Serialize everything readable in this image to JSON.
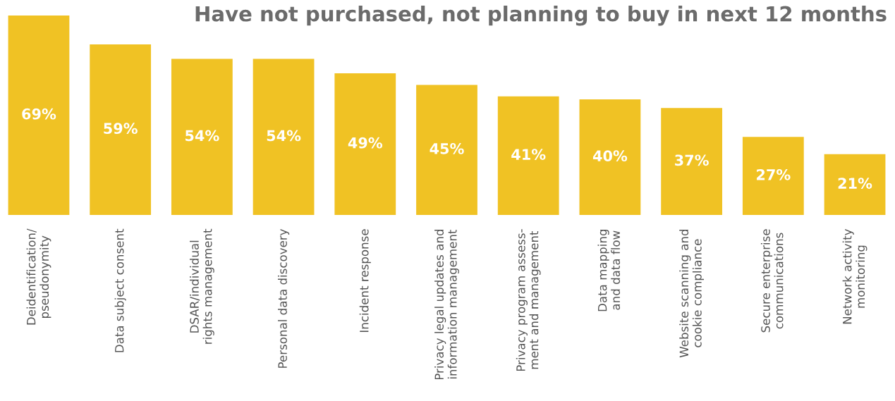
{
  "chart_data": {
    "type": "bar",
    "title": "Have not purchased, not planning to buy in next 12 months",
    "categories": [
      "Deidentification/\npseudonymity",
      "Data subject consent",
      "DSAR/individual\nrights management",
      "Personal data discovery",
      "Incident response",
      "Privacy legal updates and\ninformation management",
      "Privacy program assess-\nment and management",
      "Data mapping\nand data flow",
      "Website scanning and\ncookie compliance",
      "Secure enterprise\ncommunications",
      "Network activity\nmonitoring"
    ],
    "values": [
      69,
      59,
      54,
      54,
      49,
      45,
      41,
      40,
      37,
      27,
      21
    ],
    "value_labels": [
      "69%",
      "59%",
      "54%",
      "54%",
      "49%",
      "45%",
      "41%",
      "40%",
      "37%",
      "27%",
      "21%"
    ],
    "color": "#f0c224",
    "grid": false,
    "legend": false
  }
}
